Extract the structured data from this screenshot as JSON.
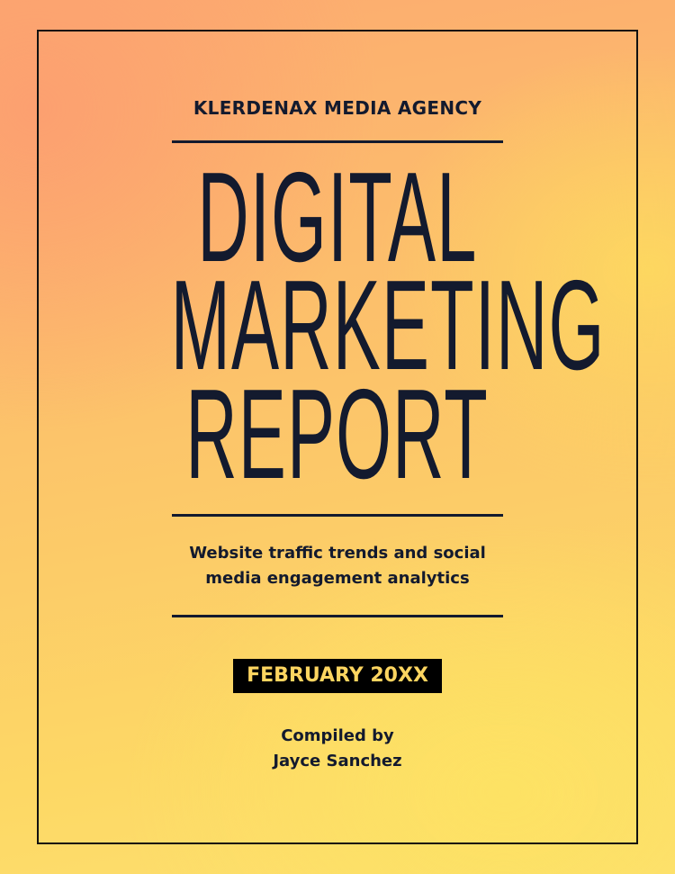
{
  "cover": {
    "agency": "KLERDENAX MEDIA AGENCY",
    "title_lines": [
      "DIGITAL",
      "MARKETING",
      "REPORT"
    ],
    "subtitle_lines": [
      "Website traffic trends and social",
      "media engagement analytics"
    ],
    "date": "FEBRUARY 20XX",
    "compiled_label": "Compiled by",
    "author": "Jayce Sanchez"
  },
  "colors": {
    "text": "#131a2e",
    "date_badge_bg": "#000000",
    "date_badge_text": "#fdd560",
    "background_top": "#fcab70",
    "background_bottom": "#fde070"
  }
}
